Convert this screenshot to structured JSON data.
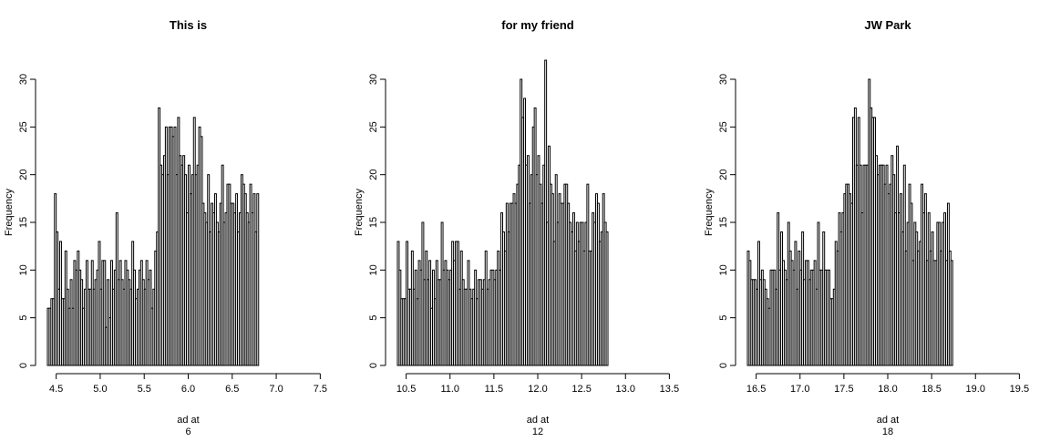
{
  "chart_data": [
    {
      "type": "bar",
      "title": "This is",
      "xlabel": "ad at",
      "xlabel_line2": "6",
      "ylabel": "Frequency",
      "x_ticks": [
        "4.5",
        "5.0",
        "5.5",
        "6.0",
        "6.5",
        "7.0",
        "7.5"
      ],
      "y_ticks": [
        "0",
        "5",
        "10",
        "15",
        "20",
        "25",
        "30"
      ],
      "xlim": [
        4.4,
        7.6
      ],
      "ylim": [
        0,
        30
      ],
      "bin_width": 0.02,
      "values": [
        6,
        6,
        7,
        7,
        18,
        14,
        8,
        13,
        7,
        7,
        12,
        8,
        6,
        9,
        6,
        11,
        10,
        12,
        10,
        9,
        6,
        8,
        11,
        8,
        8,
        11,
        8,
        9,
        10,
        13,
        8,
        11,
        11,
        4,
        9,
        5,
        11,
        8,
        10,
        16,
        9,
        11,
        9,
        8,
        11,
        10,
        9,
        8,
        13,
        10,
        7,
        8,
        10,
        11,
        9,
        8,
        11,
        9,
        10,
        6,
        8,
        12,
        14,
        27,
        21,
        20,
        22,
        25,
        20,
        25,
        25,
        24,
        25,
        20,
        26,
        22,
        21,
        22,
        20,
        16,
        21,
        18,
        20,
        26,
        20,
        21,
        25,
        24,
        17,
        16,
        15,
        20,
        14,
        17,
        16,
        18,
        15,
        14,
        17,
        21,
        15,
        16,
        19,
        19,
        17,
        17,
        16,
        18,
        14,
        16,
        20,
        19,
        18,
        16,
        15,
        19,
        16,
        18,
        14,
        18
      ]
    },
    {
      "type": "bar",
      "title": "for my friend",
      "xlabel": "ad at",
      "xlabel_line2": "12",
      "ylabel": "Frequency",
      "x_ticks": [
        "10.5",
        "11.0",
        "11.5",
        "12.0",
        "12.5",
        "13.0",
        "13.5"
      ],
      "y_ticks": [
        "0",
        "5",
        "10",
        "15",
        "20",
        "25",
        "30"
      ],
      "xlim": [
        10.4,
        13.6
      ],
      "ylim": [
        0,
        30
      ],
      "bin_width": 0.02,
      "values": [
        13,
        10,
        7,
        7,
        7,
        13,
        8,
        8,
        12,
        8,
        10,
        7,
        11,
        10,
        15,
        9,
        12,
        9,
        11,
        6,
        10,
        7,
        11,
        9,
        9,
        15,
        10,
        11,
        10,
        9,
        10,
        13,
        11,
        13,
        13,
        8,
        12,
        9,
        8,
        8,
        11,
        8,
        7,
        8,
        10,
        7,
        9,
        9,
        8,
        9,
        12,
        8,
        9,
        10,
        10,
        9,
        10,
        12,
        10,
        16,
        14,
        12,
        17,
        14,
        17,
        17,
        18,
        17,
        19,
        21,
        30,
        26,
        28,
        21,
        22,
        17,
        20,
        25,
        27,
        20,
        22,
        19,
        17,
        21,
        32,
        15,
        23,
        19,
        18,
        13,
        20,
        15,
        18,
        17,
        17,
        19,
        19,
        17,
        15,
        14,
        16,
        12,
        15,
        13,
        15,
        15,
        12,
        15,
        19,
        12,
        12,
        16,
        15,
        18,
        17,
        13,
        14,
        18,
        15,
        14
      ]
    },
    {
      "type": "bar",
      "title": "JW Park",
      "xlabel": "ad at",
      "xlabel_line2": "18",
      "ylabel": "Frequency",
      "x_ticks": [
        "16.5",
        "17.0",
        "17.5",
        "18.0",
        "18.5",
        "19.0",
        "19.5"
      ],
      "y_ticks": [
        "0",
        "5",
        "10",
        "15",
        "20",
        "25",
        "30"
      ],
      "xlim": [
        16.4,
        19.6
      ],
      "ylim": [
        0,
        30
      ],
      "bin_width": 0.02,
      "values": [
        12,
        11,
        9,
        9,
        9,
        8,
        13,
        9,
        10,
        9,
        8,
        7,
        6,
        10,
        10,
        10,
        8,
        16,
        10,
        14,
        11,
        10,
        9,
        15,
        12,
        11,
        10,
        13,
        8,
        12,
        10,
        14,
        9,
        11,
        11,
        9,
        10,
        10,
        11,
        8,
        15,
        10,
        10,
        14,
        10,
        10,
        10,
        7,
        7,
        8,
        13,
        12,
        16,
        14,
        16,
        18,
        19,
        19,
        18,
        17,
        26,
        27,
        21,
        26,
        21,
        16,
        21,
        21,
        21,
        30,
        27,
        26,
        26,
        22,
        20,
        21,
        21,
        21,
        19,
        21,
        18,
        19,
        22,
        20,
        16,
        23,
        16,
        18,
        14,
        21,
        12,
        15,
        19,
        17,
        11,
        15,
        14,
        12,
        13,
        19,
        16,
        18,
        11,
        16,
        12,
        14,
        11,
        11,
        15,
        15,
        12,
        15,
        16,
        11,
        17,
        12,
        11
      ]
    }
  ]
}
